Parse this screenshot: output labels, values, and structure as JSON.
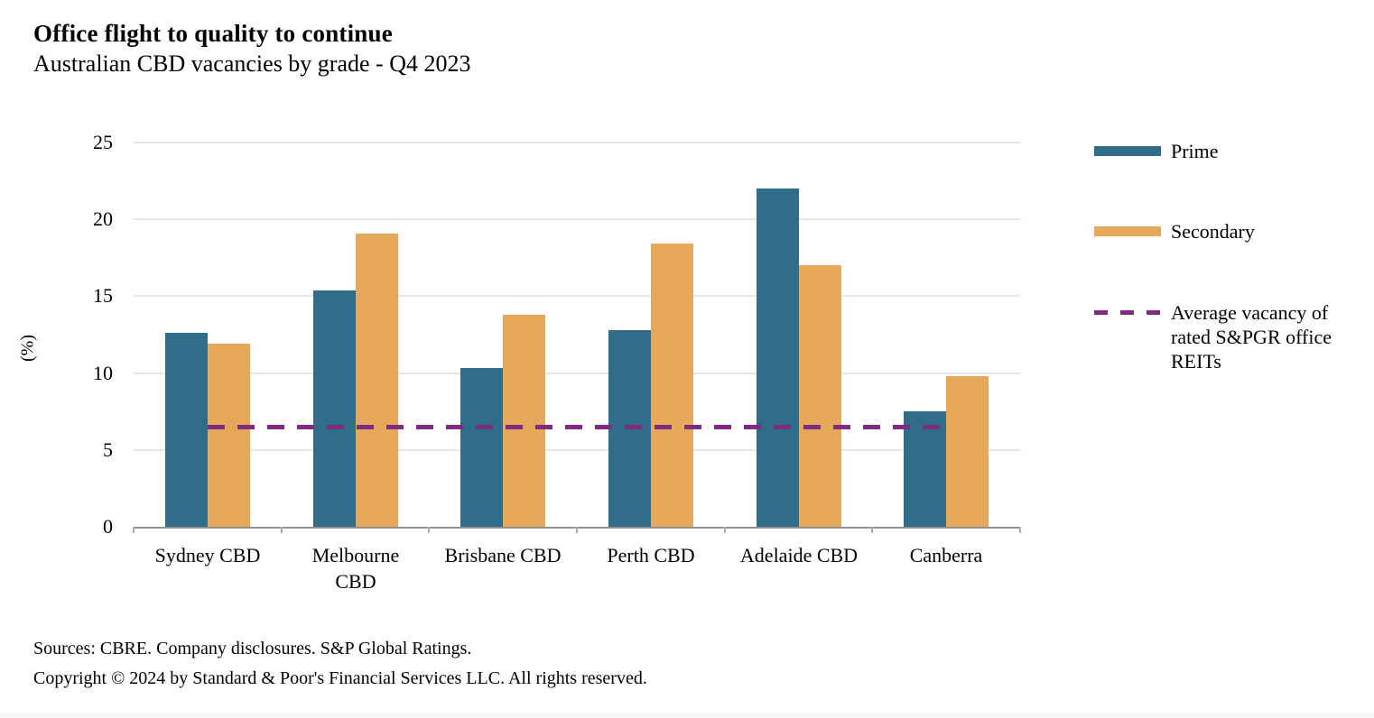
{
  "title": "Office flight to quality to continue",
  "subtitle": "Australian CBD vacancies by grade - Q4 2023",
  "chart_data": {
    "type": "bar",
    "categories": [
      "Sydney CBD",
      "Melbourne CBD",
      "Brisbane CBD",
      "Perth CBD",
      "Adelaide CBD",
      "Canberra"
    ],
    "series": [
      {
        "name": "Prime",
        "color": "#2f6d88",
        "values": [
          12.6,
          15.4,
          10.3,
          12.8,
          22.0,
          7.5
        ]
      },
      {
        "name": "Secondary",
        "color": "#e6a85a",
        "values": [
          11.9,
          19.1,
          13.8,
          18.4,
          17.0,
          9.8
        ]
      }
    ],
    "reference_line": {
      "label": "Average vacancy of rated S&PGR office REITs",
      "value": 6.5,
      "style": "dashed",
      "color": "#7d2c80"
    },
    "ylabel": "(%)",
    "ylim": [
      0,
      25
    ],
    "yticks": [
      0,
      5,
      10,
      15,
      20,
      25
    ],
    "grid": true,
    "legend_position": "right"
  },
  "legend": {
    "prime_label": "Prime",
    "secondary_label": "Secondary",
    "average_label": "Average vacancy of rated S&PGR office REITs"
  },
  "footer": {
    "sources": "Sources: CBRE. Company disclosures. S&P Global Ratings.",
    "copyright": "Copyright © 2024 by Standard & Poor's Financial Services LLC. All rights reserved."
  },
  "colors": {
    "prime": "#2f6d88",
    "secondary": "#e6a85a",
    "average_line": "#7d2c80",
    "gridline": "#e6e6e6",
    "axis": "#949494"
  }
}
